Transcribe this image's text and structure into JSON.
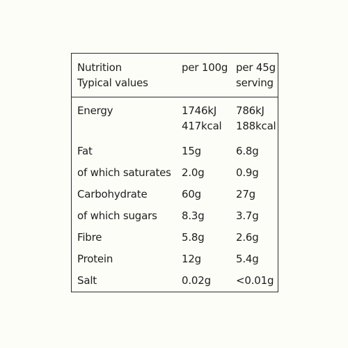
{
  "header": {
    "col1_line1": "Nutrition",
    "col1_line2": "Typical values",
    "col2": "per 100g",
    "col3_line1": "per 45g",
    "col3_line2": "serving"
  },
  "rows": [
    {
      "label": "Energy",
      "per100_line1": "1746kJ",
      "per100_line2": "417kcal",
      "serving_line1": "786kJ",
      "serving_line2": "188kcal"
    },
    {
      "label": "Fat",
      "per100": "15g",
      "serving": "6.8g"
    },
    {
      "label": "of which saturates",
      "per100": "2.0g",
      "serving": "0.9g"
    },
    {
      "label": "Carbohydrate",
      "per100": "60g",
      "serving": "27g"
    },
    {
      "label": "of which sugars",
      "per100": "8.3g",
      "serving": "3.7g"
    },
    {
      "label": "Fibre",
      "per100": "5.8g",
      "serving": "2.6g"
    },
    {
      "label": "Protein",
      "per100": "12g",
      "serving": "5.4g"
    },
    {
      "label": "Salt",
      "per100": "0.02g",
      "serving": "<0.01g"
    }
  ]
}
